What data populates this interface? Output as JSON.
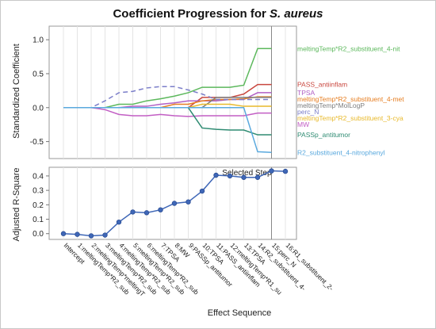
{
  "title": {
    "main": "Coefficient Progression for ",
    "species": "S. aureus"
  },
  "chart_data": [
    {
      "type": "line",
      "name": "coefficient-progression",
      "ylabel": "Standardized Coefficient",
      "ylim": [
        -0.75,
        1.2
      ],
      "yticks": [
        -0.5,
        0.0,
        0.5,
        1.0
      ],
      "ytick_labels": [
        "-0.5",
        "0.0",
        "0.5",
        "1.0"
      ],
      "grid": "vertical",
      "series": [
        {
          "label": "meltingTemp*R2_substituent_4-nit",
          "color": "#5cb85c",
          "dashed": false,
          "values": [
            0,
            0,
            0,
            0,
            0.05,
            0.05,
            0.1,
            0.13,
            0.17,
            0.22,
            0.3,
            0.3,
            0.3,
            0.33,
            0.87,
            0.87
          ]
        },
        {
          "label": "PASS_antiinflam",
          "color": "#c9473f",
          "dashed": false,
          "values": [
            0,
            0,
            0,
            0,
            0,
            0,
            0,
            0,
            0,
            0,
            0.15,
            0.15,
            0.15,
            0.2,
            0.34,
            0.34
          ]
        },
        {
          "label": "TPSA",
          "color": "#b15fc4",
          "dashed": false,
          "values": [
            0,
            0,
            0,
            0,
            0,
            0.02,
            0.02,
            0.05,
            0.07,
            0.1,
            0.1,
            0.1,
            0.12,
            0.12,
            0.22,
            0.22
          ]
        },
        {
          "label": "meltingTemp*R2_substituent_4-met",
          "color": "#e67e22",
          "dashed": false,
          "values": [
            0,
            0,
            0,
            0,
            0,
            0,
            0,
            0,
            0.05,
            0.05,
            0.1,
            0.12,
            0.12,
            0.13,
            0.16,
            0.16
          ]
        },
        {
          "label": "meltingTemp*MolLogP",
          "color": "#7d7d7d",
          "dashed": false,
          "values": [
            0,
            0,
            0,
            0,
            0,
            0,
            0,
            0,
            0,
            0,
            0,
            0.15,
            0.15,
            0.15,
            0.15,
            0.15
          ]
        },
        {
          "label": "perc_N",
          "color": "#7b7ec9",
          "dashed": true,
          "values": [
            0,
            0,
            0,
            0.1,
            0.22,
            0.24,
            0.29,
            0.31,
            0.31,
            0.26,
            0.2,
            0.12,
            0.12,
            0.12,
            0.12,
            0.12
          ]
        },
        {
          "label": "meltingTemp*R2_substituent_3-cya",
          "color": "#e8b92b",
          "dashed": false,
          "values": [
            0,
            0,
            0,
            0,
            0,
            0,
            0,
            0,
            0,
            0,
            0.05,
            0.05,
            0.05,
            0.02,
            0.02,
            0.02
          ]
        },
        {
          "label": "MW",
          "color": "#c25ec4",
          "dashed": false,
          "values": [
            0,
            0,
            0,
            -0.03,
            -0.1,
            -0.12,
            -0.12,
            -0.1,
            -0.12,
            -0.13,
            -0.12,
            -0.12,
            -0.12,
            -0.12,
            -0.08,
            -0.08
          ]
        },
        {
          "label": "PASSp_antitumor",
          "color": "#2e8b72",
          "dashed": false,
          "values": [
            0,
            0,
            0,
            0,
            0,
            0,
            0,
            0,
            0,
            0,
            -0.3,
            -0.32,
            -0.33,
            -0.33,
            -0.4,
            -0.4
          ]
        },
        {
          "label": "R2_substituent_4-nitrophenyl",
          "color": "#5aa9de",
          "dashed": false,
          "values": [
            0,
            0,
            0,
            0,
            0,
            0,
            0,
            0,
            0,
            0,
            0,
            0,
            0,
            0,
            -0.65,
            -0.66
          ]
        }
      ]
    },
    {
      "type": "line",
      "name": "adjusted-r-square",
      "ylabel": "Adjusted R-Square",
      "xlabel": "Effect Sequence",
      "ylim": [
        -0.04,
        0.46
      ],
      "yticks": [
        0.0,
        0.1,
        0.2,
        0.3,
        0.4
      ],
      "ytick_labels": [
        "0.0",
        "0.1",
        "0.2",
        "0.3",
        "0.4"
      ],
      "grid": "vertical",
      "categories": [
        "Intercept",
        "1:meltingTemp*R2_sub",
        "2:meltingTemp*meltingT",
        "3:meltingTemp*R2_sub",
        "4:meltingTemp*R2_sub",
        "5:meltingTemp*R2_sub",
        "6:meltingTemp*R2_sub",
        "7:TPSA",
        "8:MW",
        "9:PASSp_antitumor",
        "10:TPSA",
        "11:PASS_antiinflam",
        "12:meltingTemp*R1_su",
        "13:TPSA",
        "14:R2_substituent_4-",
        "15:perc_N",
        "16:R1_substituent_2-"
      ],
      "series": [
        {
          "label": "Adjusted R-Square",
          "color": "#3f67b7",
          "values": [
            0.0,
            -0.005,
            -0.015,
            -0.01,
            0.08,
            0.15,
            0.145,
            0.165,
            0.21,
            0.22,
            0.295,
            0.405,
            0.4,
            0.39,
            0.39,
            0.435,
            0.432
          ]
        }
      ],
      "selected_step_label": "Selected Step",
      "selected_step_index": 15
    }
  ]
}
